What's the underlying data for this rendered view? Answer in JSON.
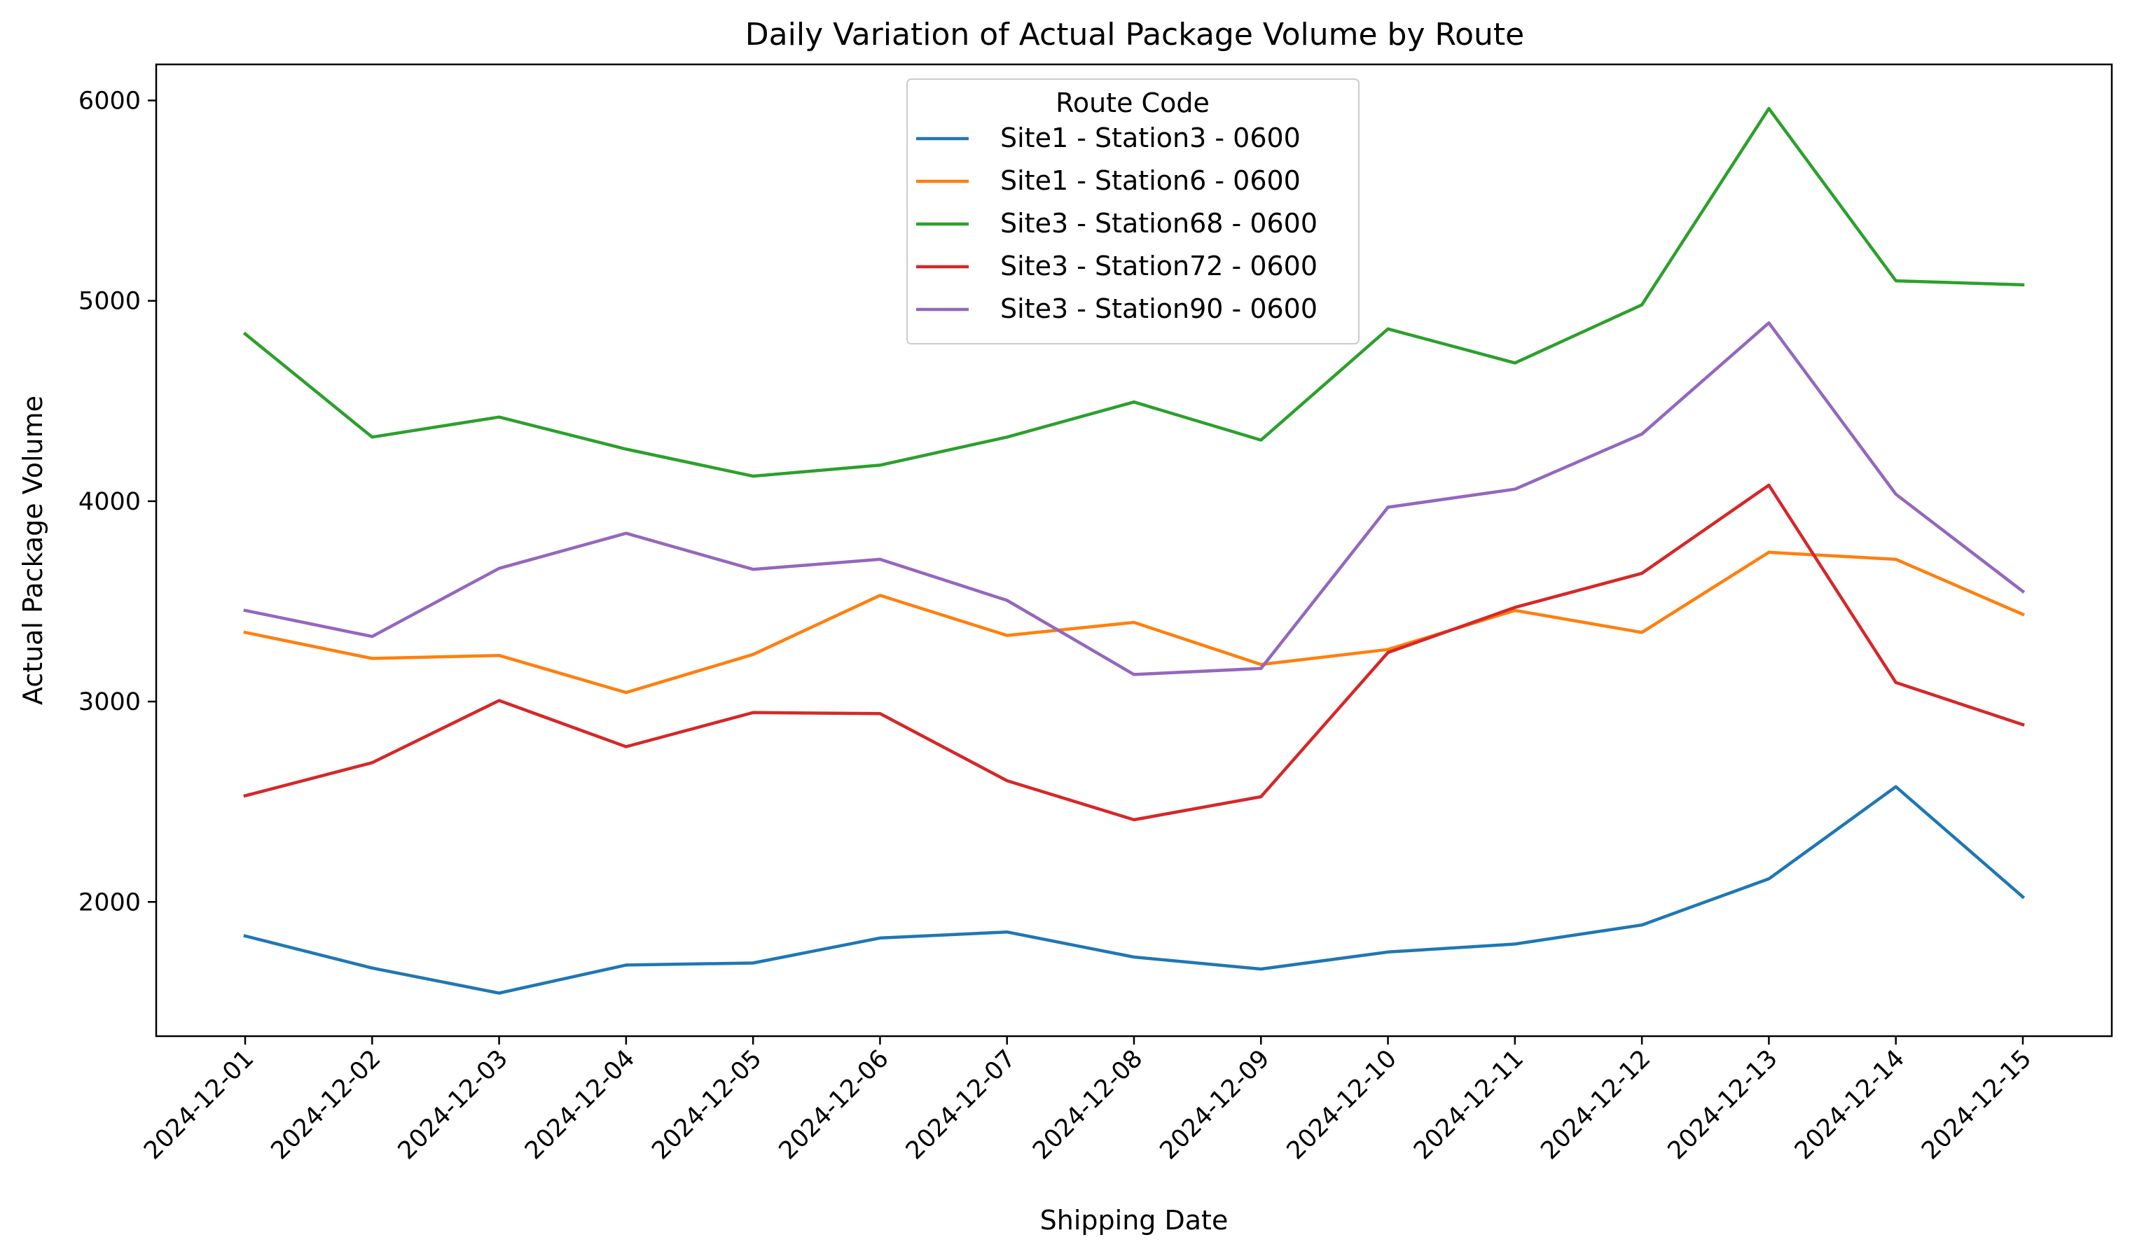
{
  "chart_data": {
    "type": "line",
    "title": "Daily Variation of Actual Package Volume by Route",
    "xlabel": "Shipping Date",
    "ylabel": "Actual Package Volume",
    "categories": [
      "2024-12-01",
      "2024-12-02",
      "2024-12-03",
      "2024-12-04",
      "2024-12-05",
      "2024-12-06",
      "2024-12-07",
      "2024-12-08",
      "2024-12-09",
      "2024-12-10",
      "2024-12-11",
      "2024-12-12",
      "2024-12-13",
      "2024-12-14",
      "2024-12-15"
    ],
    "ylim": [
      1330,
      6180
    ],
    "yticks": [
      2000,
      3000,
      4000,
      5000,
      6000
    ],
    "grid": false,
    "legend": {
      "title": "Route Code",
      "placement": "upper center"
    },
    "series": [
      {
        "name": "Site1 - Station3 - 0600",
        "color": "#1f77b4",
        "values": [
          1830,
          1670,
          1545,
          1685,
          1695,
          1820,
          1850,
          1725,
          1665,
          1750,
          1790,
          1885,
          2115,
          2575,
          2025
        ]
      },
      {
        "name": "Site1 - Station6 - 0600",
        "color": "#ff7f0e",
        "values": [
          3345,
          3215,
          3230,
          3045,
          3235,
          3530,
          3330,
          3395,
          3185,
          3260,
          3455,
          3345,
          3745,
          3710,
          3435
        ]
      },
      {
        "name": "Site3 - Station68 - 0600",
        "color": "#2ca02c",
        "values": [
          4835,
          4320,
          4420,
          4260,
          4125,
          4180,
          4320,
          4495,
          4305,
          4860,
          4690,
          4980,
          5960,
          5100,
          5080
        ]
      },
      {
        "name": "Site3 - Station72 - 0600",
        "color": "#d62728",
        "values": [
          2530,
          2695,
          3005,
          2775,
          2945,
          2940,
          2605,
          2410,
          2525,
          3245,
          3470,
          3640,
          4080,
          3095,
          2885
        ]
      },
      {
        "name": "Site3 - Station90 - 0600",
        "color": "#9467bd",
        "values": [
          3455,
          3325,
          3665,
          3840,
          3660,
          3710,
          3505,
          3135,
          3165,
          3970,
          4060,
          4335,
          4890,
          4035,
          3550
        ]
      }
    ]
  }
}
